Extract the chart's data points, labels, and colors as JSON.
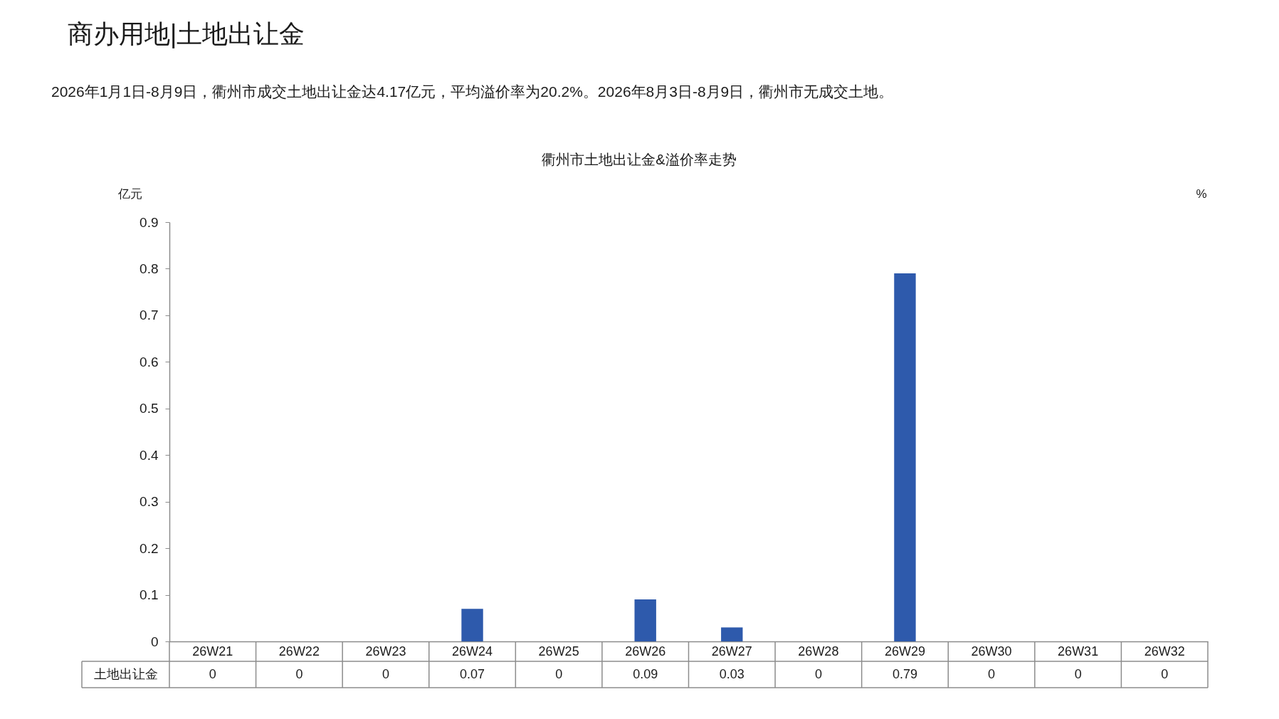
{
  "chart_data": {
    "type": "bar",
    "title": "衢州市土地出让金&溢价率走势",
    "annotations": [
      "商办用地|土地出让金",
      "2026年1月1日-8月9日，衢州市成交土地出让金达4.17亿元，平均溢价率为20.2%。2026年8月3日-8月9日，衢州市无成交土地。"
    ],
    "ylabel": "亿元",
    "y2label": "%",
    "categories": [
      "26W21",
      "26W22",
      "26W23",
      "26W24",
      "26W25",
      "26W26",
      "26W27",
      "26W28",
      "26W29",
      "26W30",
      "26W31",
      "26W32"
    ],
    "series": [
      {
        "name": "土地出让金",
        "color": "#2e5aac",
        "values": [
          0,
          0,
          0,
          0.07,
          0,
          0.09,
          0.03,
          0,
          0.79,
          0,
          0,
          0
        ]
      }
    ],
    "ylim": [
      0,
      0.9
    ],
    "yticks": [
      0,
      0.1,
      0.2,
      0.3,
      0.4,
      0.5,
      0.6,
      0.7,
      0.8,
      0.9
    ],
    "grid": false,
    "data_labels": true
  }
}
